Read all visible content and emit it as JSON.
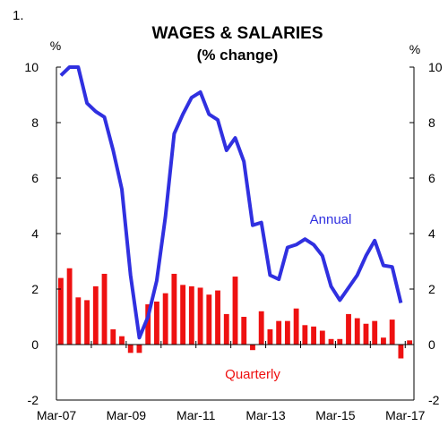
{
  "figure_number": "1.",
  "chart_data": {
    "type": "bar",
    "title": "WAGES & SALARIES",
    "subtitle": "(% change)",
    "ylabel_left": "%",
    "ylabel_right": "%",
    "ylim": [
      -2,
      10
    ],
    "yticks": [
      -2,
      0,
      2,
      4,
      6,
      8,
      10
    ],
    "xlim": [
      "2007-03",
      "2017-06"
    ],
    "xticks": [
      "Mar-07",
      "Mar-09",
      "Mar-11",
      "Mar-13",
      "Mar-15",
      "Mar-17"
    ],
    "grid": false,
    "colors": {
      "quarterly": "#ee1111",
      "annual": "#3030e0"
    },
    "series": [
      {
        "name": "Quarterly",
        "type": "bar",
        "start": "2007-03",
        "frequency": "quarterly",
        "values": [
          2.4,
          2.75,
          1.7,
          1.6,
          2.1,
          2.55,
          0.55,
          0.3,
          -0.3,
          -0.3,
          1.45,
          1.55,
          1.85,
          2.55,
          2.15,
          2.1,
          2.05,
          1.8,
          1.95,
          1.1,
          2.45,
          1.0,
          -0.2,
          1.2,
          0.55,
          0.85,
          0.85,
          1.3,
          0.7,
          0.65,
          0.5,
          0.2,
          0.2,
          1.1,
          0.95,
          0.75,
          0.85,
          0.25,
          0.9,
          -0.5,
          0.15
        ]
      },
      {
        "name": "Annual",
        "type": "line",
        "start": "2007-03",
        "frequency": "quarterly",
        "values": [
          9.7,
          10.3,
          10.3,
          8.7,
          8.4,
          8.2,
          7.0,
          5.6,
          2.5,
          0.25,
          1.0,
          2.3,
          4.6,
          7.6,
          8.3,
          8.9,
          9.1,
          8.3,
          8.1,
          7.0,
          7.45,
          6.6,
          4.3,
          4.4,
          2.5,
          2.35,
          3.5,
          3.6,
          3.8,
          3.6,
          3.2,
          2.1,
          1.6,
          2.05,
          2.5,
          3.2,
          3.75,
          2.85,
          2.8,
          1.5
        ]
      }
    ]
  }
}
